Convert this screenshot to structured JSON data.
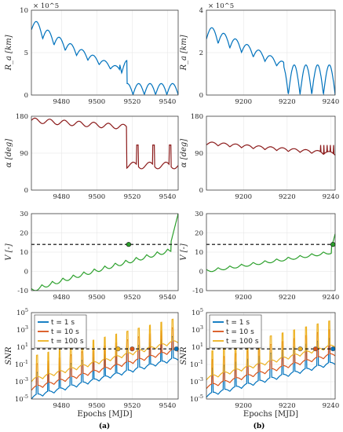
{
  "colors": {
    "blue": "#0072bd",
    "orange": "#d95319",
    "yellow": "#edb120",
    "green": "#2ca02c",
    "darkred": "#8b1a1a",
    "thresh": "#000000"
  },
  "captions": {
    "a": "(a)",
    "b": "(b)"
  },
  "chart_data": [
    {
      "id": "a1",
      "type": "line",
      "ylabel": "R_a [km]",
      "exponent": "× 10^5",
      "ylim": [
        0,
        10
      ],
      "yticks": [
        "0",
        "5",
        "10"
      ],
      "xlim": [
        9463,
        9546
      ],
      "xticks": [
        "9480",
        "9500",
        "9520",
        "9540"
      ],
      "grid": true,
      "series": [
        {
          "name": "",
          "color": "blue",
          "kind": "ra_a"
        }
      ]
    },
    {
      "id": "a2",
      "type": "line",
      "ylabel": "α [deg]",
      "ylim": [
        0,
        180
      ],
      "yticks": [
        "0",
        "90",
        "180"
      ],
      "xlim": [
        9463,
        9546
      ],
      "xticks": [
        "9480",
        "9500",
        "9520",
        "9540"
      ],
      "grid": true,
      "series": [
        {
          "name": "",
          "color": "darkred",
          "kind": "alpha_a"
        }
      ]
    },
    {
      "id": "a3",
      "type": "line",
      "ylabel": "V [-]",
      "ylim": [
        30,
        -10
      ],
      "yticks": [
        "-10",
        "0",
        "10",
        "20",
        "30"
      ],
      "xlim": [
        9463,
        9546
      ],
      "xticks": [
        "9480",
        "9500",
        "9520",
        "9540"
      ],
      "grid": true,
      "threshold": 6,
      "marker": {
        "x": 9518,
        "y": 6
      },
      "series": [
        {
          "name": "",
          "color": "green",
          "kind": "v_a"
        }
      ]
    },
    {
      "id": "a4",
      "type": "line",
      "ylabel": "SNR",
      "yscale": "log",
      "ylim": [
        -5,
        5
      ],
      "yticks": [
        "10^{-5}",
        "10^{-3}",
        "10^{-1}",
        "10^{1}",
        "10^{3}",
        "10^{5}"
      ],
      "xlim": [
        9463,
        9546
      ],
      "xticks": [
        "9480",
        "9500",
        "9520",
        "9540"
      ],
      "xlabel": "Epochs [MJD]",
      "grid": true,
      "threshold": 0.8,
      "legend": {
        "placement": "top-left",
        "entries": [
          {
            "label": "t = 1 s",
            "color": "blue"
          },
          {
            "label": "t = 10 s",
            "color": "orange"
          },
          {
            "label": "t = 100 s",
            "color": "yellow"
          }
        ]
      },
      "markers": [
        {
          "x": 9512,
          "color": "yellow"
        },
        {
          "x": 9520,
          "color": "orange"
        },
        {
          "x": 9545,
          "color": "blue"
        }
      ],
      "series": [
        {
          "name": "t = 1 s",
          "color": "blue",
          "kind": "snr_a",
          "offset": 0
        },
        {
          "name": "t = 10 s",
          "color": "orange",
          "kind": "snr_a",
          "offset": 1
        },
        {
          "name": "t = 100 s",
          "color": "yellow",
          "kind": "snr_a",
          "offset": 2
        }
      ]
    },
    {
      "id": "b1",
      "type": "line",
      "ylabel": "R_a [km]",
      "exponent": "× 10^5",
      "ylim": [
        0,
        4
      ],
      "yticks": [
        "0",
        "2",
        "4"
      ],
      "xlim": [
        9183,
        9242
      ],
      "xticks": [
        "9200",
        "9220",
        "9240"
      ],
      "grid": true,
      "series": [
        {
          "name": "",
          "color": "blue",
          "kind": "ra_b"
        }
      ]
    },
    {
      "id": "b2",
      "type": "line",
      "ylabel": "α [deg]",
      "ylim": [
        0,
        180
      ],
      "yticks": [
        "0",
        "90",
        "180"
      ],
      "xlim": [
        9183,
        9242
      ],
      "xticks": [
        "9200",
        "9220",
        "9240"
      ],
      "grid": true,
      "series": [
        {
          "name": "",
          "color": "darkred",
          "kind": "alpha_b"
        }
      ]
    },
    {
      "id": "b3",
      "type": "line",
      "ylabel": "V [-]",
      "ylim": [
        30,
        -10
      ],
      "yticks": [
        "-10",
        "0",
        "10",
        "20",
        "30"
      ],
      "xlim": [
        9183,
        9242
      ],
      "xticks": [
        "9200",
        "9220",
        "9240"
      ],
      "grid": true,
      "threshold": 6,
      "marker": {
        "x": 9241,
        "y": 6
      },
      "series": [
        {
          "name": "",
          "color": "green",
          "kind": "v_b"
        }
      ]
    },
    {
      "id": "b4",
      "type": "line",
      "ylabel": "SNR",
      "yscale": "log",
      "ylim": [
        -5,
        5
      ],
      "yticks": [
        "10^{-5}",
        "10^{-3}",
        "10^{-1}",
        "10^{1}",
        "10^{3}",
        "10^{5}"
      ],
      "xlim": [
        9183,
        9242
      ],
      "xticks": [
        "9200",
        "9220",
        "9240"
      ],
      "xlabel": "Epochs [MJD]",
      "grid": true,
      "threshold": 0.8,
      "legend": {
        "placement": "top-left",
        "entries": [
          {
            "label": "t = 1 s",
            "color": "blue"
          },
          {
            "label": "t = 10 s",
            "color": "orange"
          },
          {
            "label": "t = 100 s",
            "color": "yellow"
          }
        ]
      },
      "markers": [
        {
          "x": 9226,
          "color": "yellow"
        },
        {
          "x": 9233,
          "color": "orange"
        },
        {
          "x": 9241,
          "color": "blue"
        }
      ],
      "series": [
        {
          "name": "t = 1 s",
          "color": "blue",
          "kind": "snr_b",
          "offset": 0
        },
        {
          "name": "t = 10 s",
          "color": "orange",
          "kind": "snr_b",
          "offset": 1
        },
        {
          "name": "t = 100 s",
          "color": "yellow",
          "kind": "snr_b",
          "offset": 2
        }
      ]
    }
  ]
}
